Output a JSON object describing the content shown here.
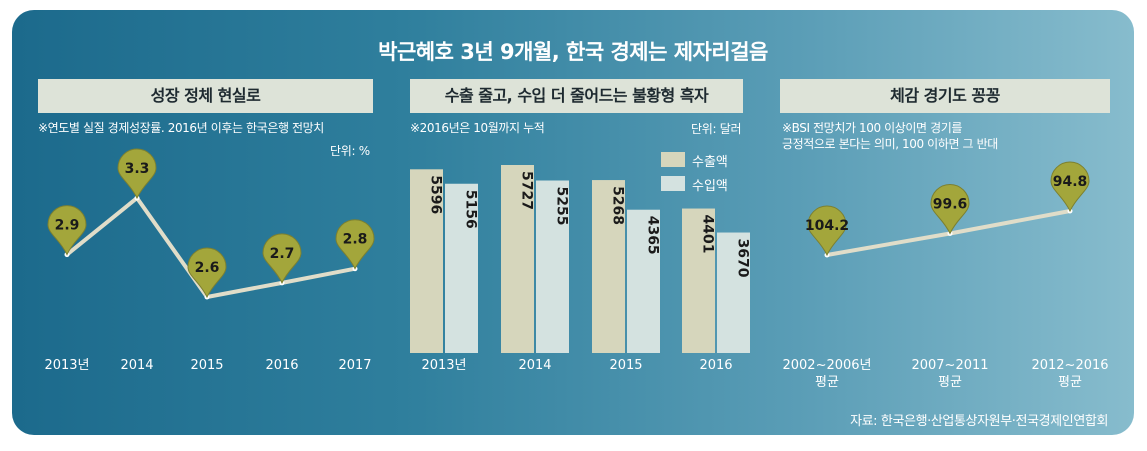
{
  "title": "박근혜호 3년 9개월, 한국 경제는 제자리걸음",
  "source": "자료: 한국은행·산업통상자원부·전국경제인연합회",
  "colors": {
    "export": "#d6d6bc",
    "import": "#d4e2e0",
    "marker": "#a3a63b",
    "line": "#e0ddc9"
  },
  "chart_data": [
    {
      "type": "line",
      "title": "성장 정체 현실로",
      "note": "※연도별 실질 경제성장률. 2016년 이후는 한국은행 전망치",
      "unit": "단위: %",
      "categories": [
        "2013년",
        "2014",
        "2015",
        "2016",
        "2017"
      ],
      "values": [
        2.9,
        3.3,
        2.6,
        2.7,
        2.8
      ],
      "value_labels": [
        "2.9",
        "3.3",
        "2.6",
        "2.7",
        "2.8"
      ],
      "ylim": [
        2.4,
        3.5
      ]
    },
    {
      "type": "bar",
      "title": "수출 줄고, 수입 더 줄어드는 불황형 흑자",
      "note": "※2016년은 10월까지 누적",
      "unit": "단위: 달러",
      "categories": [
        "2013년",
        "2014",
        "2015",
        "2016"
      ],
      "series": [
        {
          "name": "수출액",
          "values": [
            5596,
            5727,
            5268,
            4401
          ],
          "labels": [
            "5596",
            "5727",
            "5268",
            "4401"
          ]
        },
        {
          "name": "수입액",
          "values": [
            5156,
            5255,
            4365,
            3670
          ],
          "labels": [
            "5156",
            "5255",
            "4365",
            "3670"
          ]
        }
      ],
      "ylim": [
        0,
        5900
      ]
    },
    {
      "type": "line",
      "title": "체감 경기도 꽁꽁",
      "note_lines": [
        "※BSI 전망치가 100 이상이면 경기를",
        "긍정적으로 본다는 의미, 100 이하면 그 반대"
      ],
      "categories": [
        [
          "2002~2006년",
          "평균"
        ],
        [
          "2007~2011",
          "평균"
        ],
        [
          "2012~2016",
          "평균"
        ]
      ],
      "values": [
        104.2,
        99.6,
        94.8
      ],
      "value_labels": [
        "104.2",
        "99.6",
        "94.8"
      ],
      "ylim": [
        85,
        115
      ]
    }
  ]
}
